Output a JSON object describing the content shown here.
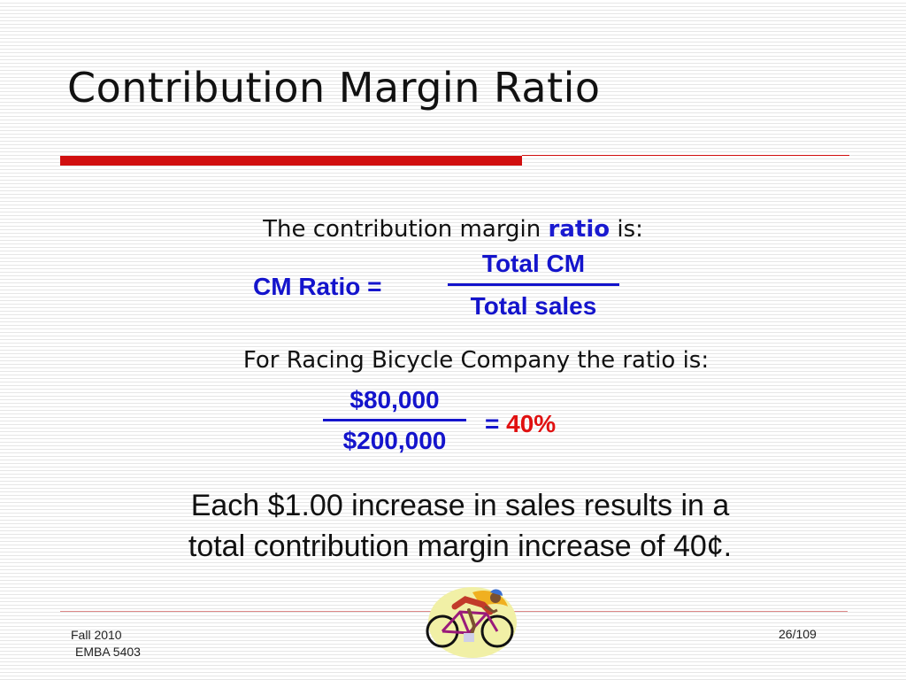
{
  "slide": {
    "title": "Contribution Margin Ratio",
    "intro_before": "The contribution margin ",
    "intro_highlight": "ratio",
    "intro_after": " is:",
    "formula": {
      "label": "CM Ratio  =",
      "numerator": "Total CM",
      "denominator": "Total sales"
    },
    "example_intro": "For Racing Bicycle Company the ratio is:",
    "example": {
      "numerator": "$80,000",
      "denominator": "$200,000",
      "equals": "= ",
      "result": "40%"
    },
    "summary_line1": "Each $1.00 increase in sales results in a",
    "summary_line2": "total contribution margin increase of 40¢."
  },
  "footer": {
    "course_term": "Fall 2010",
    "course_name": "EMBA 5403",
    "page_counter": "26/109"
  },
  "colors": {
    "accent_red": "#d10f0f",
    "formula_blue": "#1414cc",
    "result_red": "#e01010"
  },
  "icons": {
    "clipart": "cyclist-icon"
  }
}
